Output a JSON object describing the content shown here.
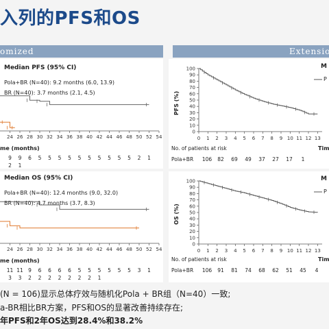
{
  "slide_title": "入列的PFS和OS",
  "banner_left": "omized",
  "banner_right": "Extension",
  "left_top": {
    "legend_title": "Median PFS (95% CI)",
    "legend_lines": [
      "Pola+BR (N=40): 9.2 months (6.0, 13.9)",
      "BR (N=40): 3.7 months (2.1, 4.5)"
    ],
    "xlabel": "me (months)",
    "xticks": [
      "24",
      "26",
      "28",
      "30",
      "32",
      "34",
      "36",
      "38",
      "40",
      "42",
      "44",
      "46",
      "48",
      "50",
      "52",
      "54"
    ],
    "risk_row1": [
      "9",
      "9",
      "6",
      "5",
      "5",
      "5",
      "5",
      "5",
      "5",
      "5",
      "5",
      "5",
      "5",
      "2",
      "1"
    ],
    "risk_row2": [
      "2",
      "1"
    ]
  },
  "left_bottom": {
    "legend_title": "Median OS (95% CI)",
    "legend_lines": [
      "Pola+BR (N=40): 12.4 months (9.0, 32.0)",
      "BR (N=40): 4.7 months (3.7, 8.3)"
    ],
    "xlabel": "me (months)",
    "xticks": [
      "24",
      "26",
      "28",
      "30",
      "32",
      "34",
      "36",
      "38",
      "40",
      "42",
      "44",
      "46",
      "48",
      "50",
      "52",
      "54"
    ],
    "risk_row1": [
      "11",
      "11",
      "9",
      "6",
      "6",
      "6",
      "6",
      "5",
      "5",
      "5",
      "5",
      "5",
      "5",
      "3",
      "1"
    ],
    "risk_row2": [
      "3",
      "3",
      "2",
      "2",
      "2",
      "2",
      "2",
      "2",
      "2",
      "1"
    ]
  },
  "right_top": {
    "ylabel": "PFS (%)",
    "yticks": [
      "100",
      "90",
      "80",
      "70",
      "60",
      "50",
      "40",
      "30",
      "20",
      "10",
      "0"
    ],
    "xticks": [
      "0",
      "1",
      "2",
      "3",
      "4",
      "5",
      "6",
      "7",
      "8",
      "9",
      "10",
      "11",
      "12",
      "13"
    ],
    "legend_head": "M",
    "legend_item": "P",
    "risk_header": "No. of patients at risk",
    "risk_label": "Pola+BR",
    "risk_values": [
      "106",
      "82",
      "69",
      "49",
      "37",
      "27",
      "17",
      "1"
    ],
    "xlabel_partial": "Tim"
  },
  "right_bottom": {
    "ylabel": "OS (%)",
    "yticks": [
      "100",
      "90",
      "80",
      "70",
      "60",
      "50",
      "40",
      "30",
      "20",
      "10",
      "0"
    ],
    "xticks": [
      "0",
      "1",
      "2",
      "3",
      "4",
      "5",
      "6",
      "7",
      "8",
      "9",
      "10",
      "11",
      "12",
      "13"
    ],
    "legend_head": "M",
    "legend_item": "P",
    "risk_header": "No. of patients at risk",
    "risk_label": "Pola+BR",
    "risk_values": [
      "106",
      "91",
      "81",
      "74",
      "68",
      "62",
      "51",
      "45",
      "4"
    ],
    "xlabel_partial": "Tim"
  },
  "chart_data": [
    {
      "type": "line",
      "title": "",
      "xlabel": "Time (months)",
      "ylabel": "PFS (%)",
      "xlim": [
        0,
        13.5
      ],
      "ylim": [
        0,
        100
      ],
      "series": [
        {
          "x": [
            0,
            1,
            2,
            3,
            4,
            5,
            6,
            7,
            8,
            9,
            10,
            11,
            12,
            13
          ],
          "y": [
            100,
            90,
            82,
            74,
            66,
            59,
            53,
            48,
            44,
            41,
            38,
            34,
            28,
            28
          ]
        }
      ]
    },
    {
      "type": "line",
      "title": "",
      "xlabel": "Time (months)",
      "ylabel": "OS (%)",
      "xlim": [
        0,
        13.5
      ],
      "ylim": [
        0,
        100
      ],
      "series": [
        {
          "x": [
            0,
            1,
            2,
            3,
            4,
            5,
            6,
            7,
            8,
            9,
            10,
            11,
            12,
            13
          ],
          "y": [
            100,
            96,
            92,
            88,
            84,
            81,
            77,
            73,
            69,
            64,
            58,
            54,
            51,
            50
          ]
        }
      ]
    },
    {
      "type": "line",
      "title": "",
      "xlabel": "me (months)",
      "ylabel": "",
      "xlim": [
        22,
        54
      ],
      "series": [
        {
          "name": "Pola+BR",
          "x": [
            22,
            28,
            30,
            32,
            52
          ],
          "y": [
            32,
            28,
            27,
            24,
            24
          ]
        },
        {
          "name": "BR",
          "x": [
            22,
            23,
            24,
            25
          ],
          "y": [
            8,
            8,
            3,
            3
          ]
        }
      ]
    },
    {
      "type": "line",
      "title": "",
      "xlabel": "me (months)",
      "ylabel": "",
      "xlim": [
        22,
        54
      ],
      "series": [
        {
          "name": "Pola+BR",
          "x": [
            22,
            30,
            34,
            52
          ],
          "y": [
            38,
            35,
            31,
            31
          ]
        },
        {
          "name": "BR",
          "x": [
            22,
            24,
            26,
            50
          ],
          "y": [
            20,
            16,
            14,
            14
          ]
        }
      ]
    }
  ],
  "footer": {
    "line1": "(N = 106)显示总体疗效与随机化Pola + BR组（N=40）一致;",
    "line2": "a-BR相比BR方案，PFS和OS的显著改善持续存在;",
    "line3": "年PFS和2年OS达到28.4%和38.2%"
  }
}
